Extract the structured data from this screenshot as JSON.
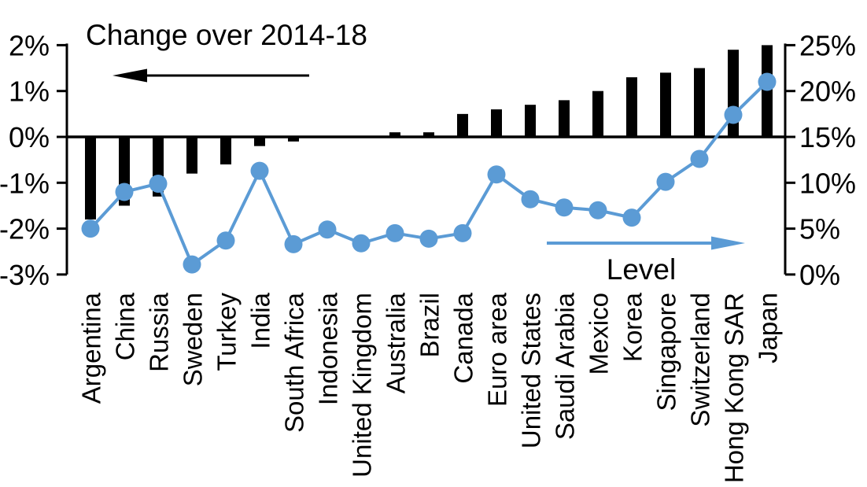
{
  "colors": {
    "bar": "#000000",
    "line": "#5B9BD5",
    "axis": "#000000",
    "text": "#000000",
    "background": "#FFFFFF"
  },
  "chart_data": {
    "type": "combo",
    "categories": [
      "Argentina",
      "China",
      "Russia",
      "Sweden",
      "Turkey",
      "India",
      "South Africa",
      "Indonesia",
      "United Kingdom",
      "Australia",
      "Brazil",
      "Canada",
      "Euro area",
      "United States",
      "Saudi Arabia",
      "Mexico",
      "Korea",
      "Singapore",
      "Switzerland",
      "Hong Kong SAR",
      "Japan"
    ],
    "series": [
      {
        "name": "Change over 2014-18",
        "type": "bar",
        "axis": "left",
        "color": "#000000",
        "values": [
          -1.8,
          -1.5,
          -1.3,
          -0.8,
          -0.6,
          -0.2,
          -0.1,
          0,
          0,
          0.1,
          0.1,
          0.5,
          0.6,
          0.7,
          0.8,
          1.0,
          1.3,
          1.4,
          1.5,
          1.9,
          2.0
        ]
      },
      {
        "name": "Level",
        "type": "line",
        "axis": "right",
        "color": "#5B9BD5",
        "values": [
          5.0,
          9.0,
          9.9,
          1.1,
          3.7,
          11.3,
          3.3,
          4.9,
          3.4,
          4.5,
          3.9,
          4.5,
          10.9,
          8.2,
          7.3,
          7.0,
          6.2,
          10.1,
          12.6,
          17.4,
          21.0
        ]
      }
    ],
    "left_axis": {
      "tick_labels": [
        "2%",
        "1%",
        "0%",
        "-1%",
        "-2%",
        "-3%"
      ],
      "tick_values": [
        2,
        1,
        0,
        -1,
        -2,
        -3
      ],
      "range": [
        -3,
        2
      ],
      "unit": "%"
    },
    "right_axis": {
      "tick_labels": [
        "25%",
        "20%",
        "15%",
        "10%",
        "5%",
        "0%"
      ],
      "tick_values": [
        25,
        20,
        15,
        10,
        5,
        0
      ],
      "range": [
        0,
        25
      ],
      "unit": "%"
    },
    "annotations": [
      {
        "text": "Change over 2014-18",
        "arrow": "left",
        "color": "#000000"
      },
      {
        "text": "Level",
        "arrow": "right",
        "color": "#5B9BD5"
      }
    ],
    "grid": false,
    "zero_line": true,
    "legend_position": "in-chart-arrows"
  }
}
